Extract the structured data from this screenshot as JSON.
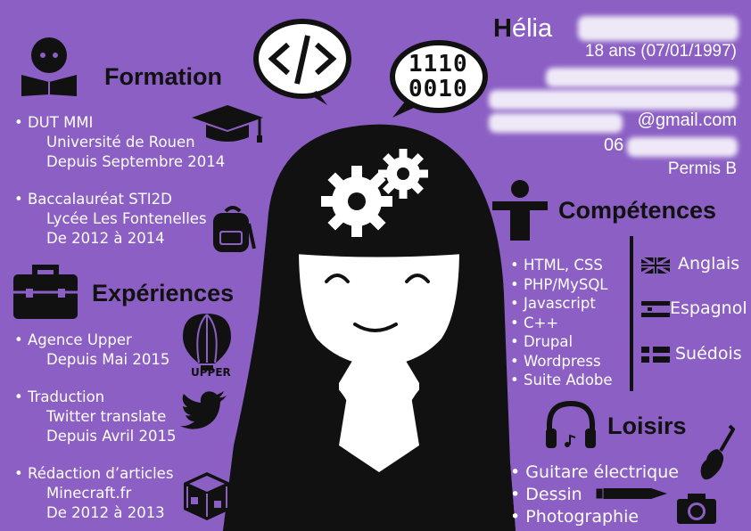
{
  "header": {
    "first_initial": "H",
    "first_rest": "élia",
    "age_line": "18 ans (07/01/1997)",
    "email_suffix": "@gmail.com",
    "phone_prefix": "06",
    "license": "Permis B"
  },
  "formation": {
    "title": "Formation",
    "items": [
      {
        "bullet": "• DUT MMI",
        "school": "Université de Rouen",
        "period": "Depuis Septembre 2014"
      },
      {
        "bullet": "• Baccalauréat STI2D",
        "school": "Lycée Les Fontenelles",
        "period": "De 2012 à 2014"
      }
    ]
  },
  "experiences": {
    "title": "Expériences",
    "items": [
      {
        "bullet": "• Agence Upper",
        "lines": [
          "Depuis Mai 2015"
        ]
      },
      {
        "bullet": "• Traduction",
        "lines": [
          "Twitter translate",
          "Depuis Avril  2015"
        ]
      },
      {
        "bullet": "• Rédaction d’articles",
        "lines": [
          "Minecraft.fr",
          "De 2012 à 2013"
        ]
      }
    ]
  },
  "competences": {
    "title": "Compétences",
    "skills": [
      "• HTML, CSS",
      "• PHP/MySQL",
      "• Javascript",
      "• C++",
      "• Drupal",
      "• Wordpress",
      "• Suite Adobe"
    ],
    "languages": [
      "Anglais",
      "Espagnol",
      "Suédois"
    ]
  },
  "loisirs": {
    "title": "Loisirs",
    "items": [
      "• Guitare électrique",
      "• Dessin",
      "• Photographie"
    ]
  },
  "decor": {
    "binary_top": "1110",
    "binary_bottom": "0010",
    "code_symbol": "</>",
    "balloon_label": "UPPER"
  },
  "colors": {
    "background": "#8b5fc4",
    "ink": "#111111",
    "text": "#ffffff"
  }
}
